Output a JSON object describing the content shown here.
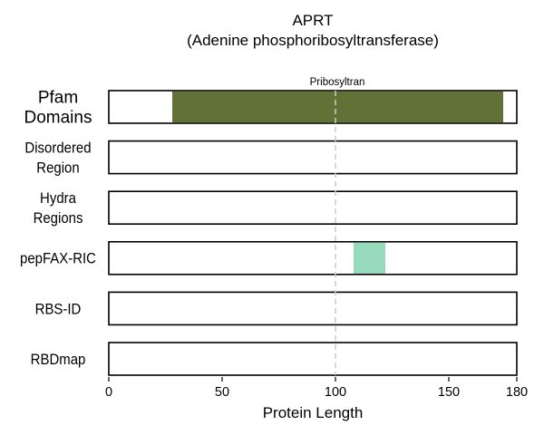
{
  "chart_data": {
    "type": "bar",
    "title": "APRT",
    "subtitle": "(Adenine phosphoribosyltransferase)",
    "xlabel": "Protein Length",
    "xlim": [
      0,
      180
    ],
    "xticks": [
      "0",
      "50",
      "100",
      "150",
      "180"
    ],
    "xtick_values": [
      0,
      50,
      100,
      150,
      180
    ],
    "marker_x": 100,
    "tracks": [
      {
        "label_lines": [
          "Pfam",
          "Domains"
        ],
        "segments": [
          {
            "start": 28,
            "end": 174,
            "label": "Pribosyltran",
            "color": "#627135"
          }
        ]
      },
      {
        "label_lines": [
          "Disordered",
          "Region"
        ],
        "segments": []
      },
      {
        "label_lines": [
          "Hydra",
          "Regions"
        ],
        "segments": []
      },
      {
        "label_lines": [
          "pepFAX-RIC"
        ],
        "segments": [
          {
            "start": 108,
            "end": 122,
            "label": "",
            "color": "#97d9bb"
          }
        ]
      },
      {
        "label_lines": [
          "RBS-ID"
        ],
        "segments": []
      },
      {
        "label_lines": [
          "RBDmap"
        ],
        "segments": []
      }
    ]
  }
}
